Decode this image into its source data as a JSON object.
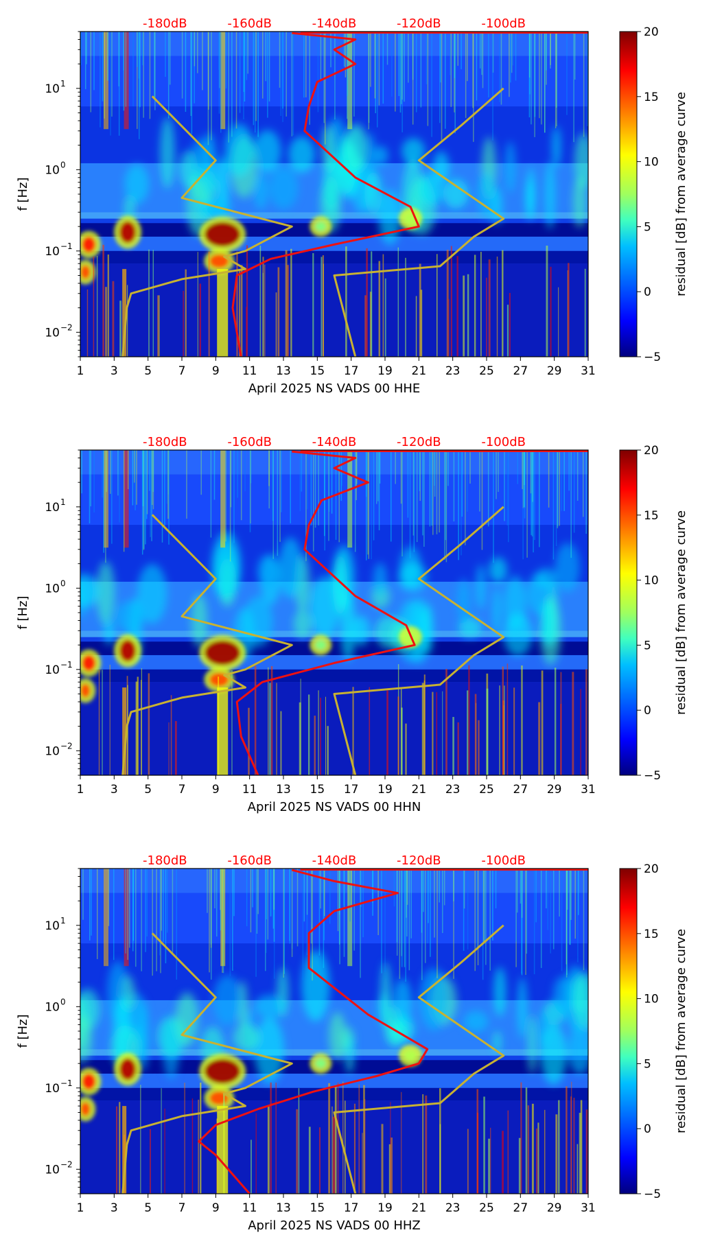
{
  "colors": {
    "noise_model": "#c8b232",
    "average_curve": "#ee1111",
    "colormap": [
      "#00007f",
      "#0000ff",
      "#007fff",
      "#00ffff",
      "#7fff7f",
      "#ffff00",
      "#ff7f00",
      "#ff0000",
      "#7f0000"
    ]
  },
  "chart_data": [
    {
      "type": "heatmap",
      "xlabel": "April 2025 NS VADS 00 HHE",
      "ylabel": "f [Hz]",
      "x_ticks": [
        "1",
        "3",
        "5",
        "7",
        "9",
        "11",
        "13",
        "15",
        "17",
        "19",
        "21",
        "23",
        "25",
        "27",
        "29",
        "31"
      ],
      "y_ticks": [
        "10",
        "10",
        "10",
        "10"
      ],
      "y_tick_exponents": [
        "−2",
        "−1",
        "0",
        "1"
      ],
      "top_axis_ticks": [
        "-180dB",
        "-160dB",
        "-140dB",
        "-120dB",
        "-100dB"
      ],
      "colorbar_label": "residual [dB] from average curve",
      "colorbar_ticks": [
        "−5",
        "0",
        "5",
        "10",
        "15",
        "20"
      ],
      "xlim": [
        1,
        31
      ],
      "ylim": [
        0.005,
        50
      ],
      "y_scale": "log",
      "clim": [
        -5,
        20
      ],
      "series": [
        {
          "type": "line",
          "values": [
            [
              -190,
              0.005
            ],
            [
              -189,
              0.02
            ],
            [
              -188,
              0.03
            ],
            [
              -176,
              0.045
            ],
            [
              -161,
              0.06
            ],
            [
              -166,
              0.085
            ],
            [
              -161,
              0.1
            ],
            [
              -150,
              0.2
            ],
            [
              -176,
              0.45
            ],
            [
              -168,
              1.3
            ],
            [
              -183,
              8
            ]
          ]
        },
        {
          "type": "line",
          "values": [
            [
              -135,
              0.005
            ],
            [
              -140,
              0.05
            ],
            [
              -115,
              0.065
            ],
            [
              -107,
              0.15
            ],
            [
              -100,
              0.25
            ],
            [
              -120,
              1.3
            ],
            [
              -110,
              3.5
            ],
            [
              -100,
              10
            ]
          ]
        },
        {
          "type": "line",
          "values": [
            [
              -162,
              0.005
            ],
            [
              -164,
              0.02
            ],
            [
              -163,
              0.05
            ],
            [
              -155,
              0.08
            ],
            [
              -140,
              0.12
            ],
            [
              -120,
              0.2
            ],
            [
              -122,
              0.35
            ],
            [
              -135,
              0.8
            ],
            [
              -147,
              3
            ],
            [
              -146,
              6
            ],
            [
              -144,
              12
            ],
            [
              -135,
              20
            ],
            [
              -140,
              30
            ],
            [
              -135,
              40
            ],
            [
              -150,
              48
            ]
          ]
        }
      ]
    },
    {
      "type": "heatmap",
      "xlabel": "April 2025 NS VADS 00 HHN",
      "ylabel": "f [Hz]",
      "x_ticks": [
        "1",
        "3",
        "5",
        "7",
        "9",
        "11",
        "13",
        "15",
        "17",
        "19",
        "21",
        "23",
        "25",
        "27",
        "29",
        "31"
      ],
      "y_ticks": [
        "10",
        "10",
        "10",
        "10"
      ],
      "y_tick_exponents": [
        "−2",
        "−1",
        "0",
        "1"
      ],
      "top_axis_ticks": [
        "-180dB",
        "-160dB",
        "-140dB",
        "-120dB",
        "-100dB"
      ],
      "colorbar_label": "residual [dB] from average curve",
      "colorbar_ticks": [
        "−5",
        "0",
        "5",
        "10",
        "15",
        "20"
      ],
      "xlim": [
        1,
        31
      ],
      "ylim": [
        0.005,
        50
      ],
      "y_scale": "log",
      "clim": [
        -5,
        20
      ],
      "series": [
        {
          "type": "line",
          "values": [
            [
              -190,
              0.005
            ],
            [
              -189,
              0.02
            ],
            [
              -188,
              0.03
            ],
            [
              -176,
              0.045
            ],
            [
              -161,
              0.06
            ],
            [
              -166,
              0.085
            ],
            [
              -161,
              0.1
            ],
            [
              -150,
              0.2
            ],
            [
              -176,
              0.45
            ],
            [
              -168,
              1.3
            ],
            [
              -183,
              8
            ]
          ]
        },
        {
          "type": "line",
          "values": [
            [
              -135,
              0.005
            ],
            [
              -140,
              0.05
            ],
            [
              -115,
              0.065
            ],
            [
              -107,
              0.15
            ],
            [
              -100,
              0.25
            ],
            [
              -120,
              1.3
            ],
            [
              -110,
              3.5
            ],
            [
              -100,
              10
            ]
          ]
        },
        {
          "type": "line",
          "values": [
            [
              -158,
              0.005
            ],
            [
              -162,
              0.015
            ],
            [
              -163,
              0.04
            ],
            [
              -157,
              0.07
            ],
            [
              -140,
              0.12
            ],
            [
              -121,
              0.2
            ],
            [
              -123,
              0.35
            ],
            [
              -135,
              0.8
            ],
            [
              -147,
              3
            ],
            [
              -146,
              6
            ],
            [
              -143,
              12
            ],
            [
              -132,
              20
            ],
            [
              -140,
              30
            ],
            [
              -135,
              40
            ],
            [
              -150,
              48
            ]
          ]
        }
      ]
    },
    {
      "type": "heatmap",
      "xlabel": "April 2025 NS VADS 00 HHZ",
      "ylabel": "f [Hz]",
      "x_ticks": [
        "1",
        "3",
        "5",
        "7",
        "9",
        "11",
        "13",
        "15",
        "17",
        "19",
        "21",
        "23",
        "25",
        "27",
        "29",
        "31"
      ],
      "y_ticks": [
        "10",
        "10",
        "10",
        "10"
      ],
      "y_tick_exponents": [
        "−2",
        "−1",
        "0",
        "1"
      ],
      "top_axis_ticks": [
        "-180dB",
        "-160dB",
        "-140dB",
        "-120dB",
        "-100dB"
      ],
      "colorbar_label": "residual [dB] from average curve",
      "colorbar_ticks": [
        "−5",
        "0",
        "5",
        "10",
        "15",
        "20"
      ],
      "xlim": [
        1,
        31
      ],
      "ylim": [
        0.005,
        50
      ],
      "y_scale": "log",
      "clim": [
        -5,
        20
      ],
      "series": [
        {
          "type": "line",
          "values": [
            [
              -190,
              0.005
            ],
            [
              -189,
              0.02
            ],
            [
              -188,
              0.03
            ],
            [
              -176,
              0.045
            ],
            [
              -161,
              0.06
            ],
            [
              -166,
              0.085
            ],
            [
              -161,
              0.1
            ],
            [
              -150,
              0.2
            ],
            [
              -176,
              0.45
            ],
            [
              -168,
              1.3
            ],
            [
              -183,
              8
            ]
          ]
        },
        {
          "type": "line",
          "values": [
            [
              -135,
              0.005
            ],
            [
              -140,
              0.05
            ],
            [
              -115,
              0.065
            ],
            [
              -107,
              0.15
            ],
            [
              -100,
              0.25
            ],
            [
              -120,
              1.3
            ],
            [
              -110,
              3.5
            ],
            [
              -100,
              10
            ]
          ]
        },
        {
          "type": "line",
          "values": [
            [
              -160,
              0.005
            ],
            [
              -168,
              0.015
            ],
            [
              -172,
              0.022
            ],
            [
              -168,
              0.035
            ],
            [
              -158,
              0.055
            ],
            [
              -145,
              0.09
            ],
            [
              -130,
              0.14
            ],
            [
              -120,
              0.2
            ],
            [
              -118,
              0.3
            ],
            [
              -132,
              0.8
            ],
            [
              -146,
              3
            ],
            [
              -146,
              8
            ],
            [
              -140,
              15
            ],
            [
              -125,
              25
            ],
            [
              -140,
              35
            ],
            [
              -150,
              48
            ]
          ]
        }
      ]
    }
  ]
}
